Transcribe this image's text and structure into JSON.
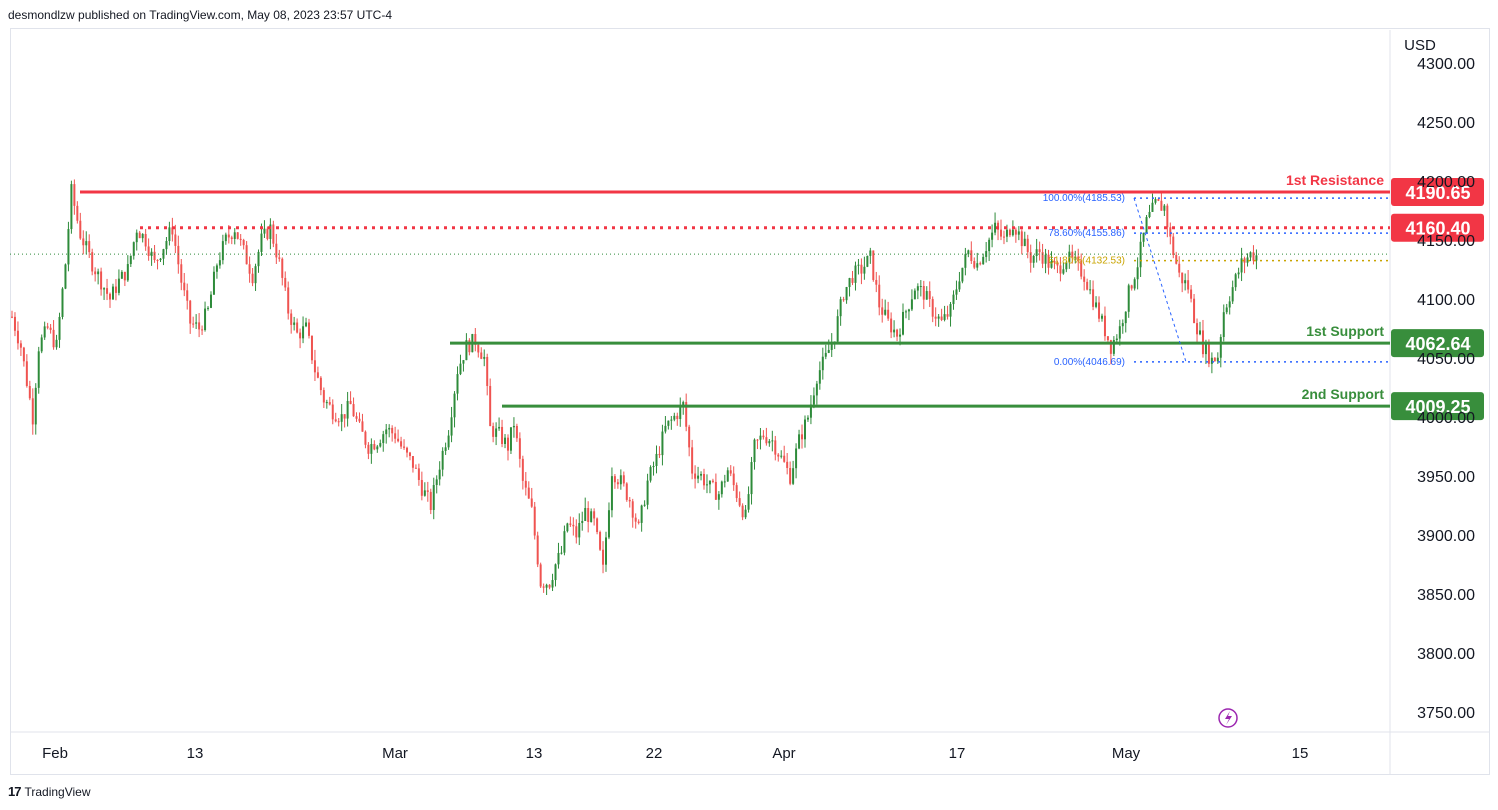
{
  "header": {
    "published_text": "desmondlzw published on TradingView.com, May 08, 2023 23:57 UTC-4"
  },
  "footer": {
    "logo_mark": "17",
    "brand": "TradingView"
  },
  "colors": {
    "resistance": "#f23645",
    "support": "#388e3c",
    "fib_blue": "#2962ff",
    "fib_gold": "#c9a400",
    "candle_up": "#26a69a",
    "candle_up_drawn": "#2e8b3a",
    "candle_down": "#ef5350",
    "axis_text": "#131722",
    "grid_frame": "#e0e3eb"
  },
  "chart_data": {
    "type": "candlestick",
    "currency": "USD",
    "y_range": [
      3730,
      4310
    ],
    "y_ticks": [
      "4300.00",
      "4250.00",
      "4200.00",
      "4150.00",
      "4100.00",
      "4050.00",
      "4000.00",
      "3950.00",
      "3900.00",
      "3850.00",
      "3800.00",
      "3750.00"
    ],
    "x_ticks": [
      "Feb",
      "13",
      "Mar",
      "13",
      "22",
      "Apr",
      "17",
      "May",
      "15"
    ],
    "last_price": 4138,
    "levels": [
      {
        "label": "1st Resistance",
        "price": 4190.65,
        "price_label": "4190.65",
        "color": "#f23645",
        "style": "solid"
      },
      {
        "label": "",
        "price": 4160.4,
        "price_label": "4160.40",
        "color": "#f23645",
        "style": "dotted"
      },
      {
        "label": "1st Support",
        "price": 4062.64,
        "price_label": "4062.64",
        "color": "#388e3c",
        "style": "solid"
      },
      {
        "label": "2nd Support",
        "price": 4009.25,
        "price_label": "4009.25",
        "color": "#388e3c",
        "style": "solid"
      }
    ],
    "fibonacci": [
      {
        "label": "100.00%(4185.53)",
        "price": 4185.53,
        "color": "#2962ff"
      },
      {
        "label": "78.60%(4155.86)",
        "price": 4155.86,
        "color": "#2962ff"
      },
      {
        "label": "61.80%(4132.53)",
        "price": 4132.53,
        "color": "#c9a400"
      },
      {
        "label": "0.00%(4046.69)",
        "price": 4046.69,
        "color": "#2962ff"
      }
    ],
    "price_path": [
      [
        0,
        4085
      ],
      [
        3,
        4060
      ],
      [
        5,
        4030
      ],
      [
        7,
        4000
      ],
      [
        9,
        4060
      ],
      [
        12,
        4075
      ],
      [
        15,
        4060
      ],
      [
        18,
        4130
      ],
      [
        20,
        4191
      ],
      [
        23,
        4155
      ],
      [
        27,
        4130
      ],
      [
        30,
        4115
      ],
      [
        33,
        4100
      ],
      [
        36,
        4115
      ],
      [
        39,
        4125
      ],
      [
        42,
        4160
      ],
      [
        45,
        4150
      ],
      [
        48,
        4130
      ],
      [
        51,
        4145
      ],
      [
        54,
        4160
      ],
      [
        57,
        4115
      ],
      [
        60,
        4080
      ],
      [
        63,
        4075
      ],
      [
        66,
        4090
      ],
      [
        69,
        4130
      ],
      [
        72,
        4150
      ],
      [
        75,
        4160
      ],
      [
        78,
        4140
      ],
      [
        81,
        4120
      ],
      [
        84,
        4150
      ],
      [
        87,
        4160
      ],
      [
        90,
        4130
      ],
      [
        93,
        4090
      ],
      [
        96,
        4070
      ],
      [
        99,
        4075
      ],
      [
        102,
        4040
      ],
      [
        105,
        4015
      ],
      [
        108,
        4005
      ],
      [
        111,
        4000
      ],
      [
        114,
        4010
      ],
      [
        117,
        3990
      ],
      [
        120,
        3975
      ],
      [
        123,
        3980
      ],
      [
        126,
        3990
      ],
      [
        129,
        3985
      ],
      [
        132,
        3970
      ],
      [
        135,
        3960
      ],
      [
        138,
        3940
      ],
      [
        141,
        3925
      ],
      [
        144,
        3960
      ],
      [
        147,
        3990
      ],
      [
        150,
        4040
      ],
      [
        153,
        4060
      ],
      [
        156,
        4065
      ],
      [
        159,
        4050
      ],
      [
        161,
        3990
      ],
      [
        164,
        3985
      ],
      [
        167,
        3975
      ],
      [
        169,
        3995
      ],
      [
        172,
        3945
      ],
      [
        175,
        3920
      ],
      [
        178,
        3860
      ],
      [
        181,
        3860
      ],
      [
        183,
        3875
      ],
      [
        185,
        3885
      ],
      [
        187,
        3910
      ],
      [
        190,
        3900
      ],
      [
        193,
        3920
      ],
      [
        196,
        3910
      ],
      [
        199,
        3870
      ],
      [
        202,
        3955
      ],
      [
        205,
        3945
      ],
      [
        208,
        3930
      ],
      [
        211,
        3905
      ],
      [
        214,
        3945
      ],
      [
        217,
        3965
      ],
      [
        220,
        3990
      ],
      [
        223,
        4000
      ],
      [
        226,
        4010
      ],
      [
        229,
        3955
      ],
      [
        232,
        3950
      ],
      [
        235,
        3940
      ],
      [
        238,
        3935
      ],
      [
        241,
        3955
      ],
      [
        244,
        3935
      ],
      [
        247,
        3915
      ],
      [
        250,
        3975
      ],
      [
        253,
        3985
      ],
      [
        256,
        3980
      ],
      [
        259,
        3965
      ],
      [
        262,
        3950
      ],
      [
        265,
        3980
      ],
      [
        268,
        4000
      ],
      [
        271,
        4035
      ],
      [
        274,
        4050
      ],
      [
        277,
        4070
      ],
      [
        280,
        4105
      ],
      [
        283,
        4120
      ],
      [
        286,
        4125
      ],
      [
        289,
        4135
      ],
      [
        292,
        4095
      ],
      [
        295,
        4080
      ],
      [
        298,
        4070
      ],
      [
        301,
        4090
      ],
      [
        304,
        4110
      ],
      [
        307,
        4105
      ],
      [
        310,
        4090
      ],
      [
        313,
        4080
      ],
      [
        316,
        4090
      ],
      [
        319,
        4120
      ],
      [
        322,
        4140
      ],
      [
        325,
        4130
      ],
      [
        328,
        4145
      ],
      [
        331,
        4160
      ],
      [
        334,
        4150
      ],
      [
        337,
        4165
      ],
      [
        340,
        4150
      ],
      [
        343,
        4135
      ],
      [
        346,
        4140
      ],
      [
        349,
        4130
      ],
      [
        352,
        4125
      ],
      [
        355,
        4135
      ],
      [
        358,
        4130
      ],
      [
        361,
        4120
      ],
      [
        364,
        4100
      ],
      [
        367,
        4080
      ],
      [
        370,
        4060
      ],
      [
        373,
        4075
      ],
      [
        376,
        4105
      ],
      [
        379,
        4130
      ],
      [
        382,
        4165
      ],
      [
        385,
        4180
      ],
      [
        388,
        4178
      ],
      [
        390,
        4150
      ],
      [
        393,
        4120
      ],
      [
        396,
        4110
      ],
      [
        398,
        4085
      ],
      [
        401,
        4060
      ],
      [
        404,
        4048
      ],
      [
        406,
        4052
      ],
      [
        408,
        4090
      ],
      [
        411,
        4110
      ],
      [
        414,
        4130
      ],
      [
        417,
        4138
      ],
      [
        420,
        4136
      ]
    ]
  }
}
